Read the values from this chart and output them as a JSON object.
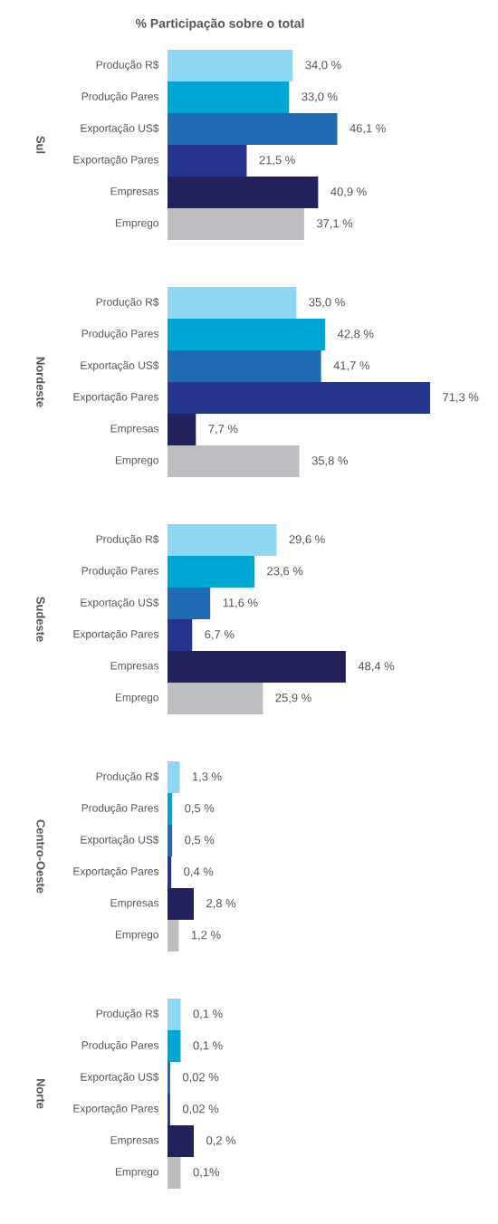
{
  "chart_data": [
    {
      "type": "bar",
      "orientation": "horizontal",
      "title": "% Participação sobre o total",
      "ylabel": "Sul",
      "categories": [
        "Produção R$",
        "Produção Pares",
        "Exportação US$",
        "Exportação Pares",
        "Empresas",
        "Emprego"
      ],
      "values": [
        34.0,
        33.0,
        46.1,
        21.5,
        40.9,
        37.1
      ],
      "value_labels": [
        "34,0 %",
        "33,0 %",
        "46,1 %",
        "21,5 %",
        "40,9 %",
        "37,1 %"
      ],
      "colors": [
        "#8ed6f2",
        "#00a6d3",
        "#1f6ab3",
        "#25358d",
        "#23215c",
        "#bdbec2"
      ]
    },
    {
      "type": "bar",
      "orientation": "horizontal",
      "ylabel": "Nordeste",
      "categories": [
        "Produção R$",
        "Produção Pares",
        "Exportação US$",
        "Exportação Pares",
        "Empresas",
        "Emprego"
      ],
      "values": [
        35.0,
        42.8,
        41.7,
        71.3,
        7.7,
        35.8
      ],
      "value_labels": [
        "35,0 %",
        "42,8 %",
        "41,7 %",
        "71,3 %",
        "7,7 %",
        "35,8 %"
      ],
      "colors": [
        "#8ed6f2",
        "#00a6d3",
        "#1f6ab3",
        "#25358d",
        "#23215c",
        "#bdbec2"
      ]
    },
    {
      "type": "bar",
      "orientation": "horizontal",
      "ylabel": "Sudeste",
      "categories": [
        "Produção R$",
        "Produção Pares",
        "Exportação US$",
        "Exportação Pares",
        "Empresas",
        "Emprego"
      ],
      "values": [
        29.6,
        23.6,
        11.6,
        6.7,
        48.4,
        25.9
      ],
      "value_labels": [
        "29,6 %",
        "23,6 %",
        "11,6 %",
        "6,7 %",
        "48,4 %",
        "25,9 %"
      ],
      "colors": [
        "#8ed6f2",
        "#00a6d3",
        "#1f6ab3",
        "#25358d",
        "#23215c",
        "#bdbec2"
      ]
    },
    {
      "type": "bar",
      "orientation": "horizontal",
      "ylabel": "Centro-Oeste",
      "categories": [
        "Produção R$",
        "Produção Pares",
        "Exportação US$",
        "Exportação Pares",
        "Empresas",
        "Emprego"
      ],
      "values": [
        1.3,
        0.5,
        0.5,
        0.4,
        2.8,
        1.2
      ],
      "value_labels": [
        "1,3 %",
        "0,5 %",
        "0,5 %",
        "0,4 %",
        "2,8 %",
        "1,2 %"
      ],
      "colors": [
        "#8ed6f2",
        "#00a6d3",
        "#1f6ab3",
        "#25358d",
        "#23215c",
        "#bdbec2"
      ]
    },
    {
      "type": "bar",
      "orientation": "horizontal",
      "ylabel": "Norte",
      "categories": [
        "Produção R$",
        "Produção Pares",
        "Exportação US$",
        "Exportação Pares",
        "Empresas",
        "Emprego"
      ],
      "values": [
        0.1,
        0.1,
        0.02,
        0.02,
        0.2,
        0.1
      ],
      "value_labels": [
        "0,1 %",
        "0,1 %",
        "0,02 %",
        "0,02 %",
        "0,2 %",
        "0,1%"
      ],
      "colors": [
        "#8ed6f2",
        "#00a6d3",
        "#1f6ab3",
        "#25358d",
        "#23215c",
        "#bdbec2"
      ]
    }
  ]
}
